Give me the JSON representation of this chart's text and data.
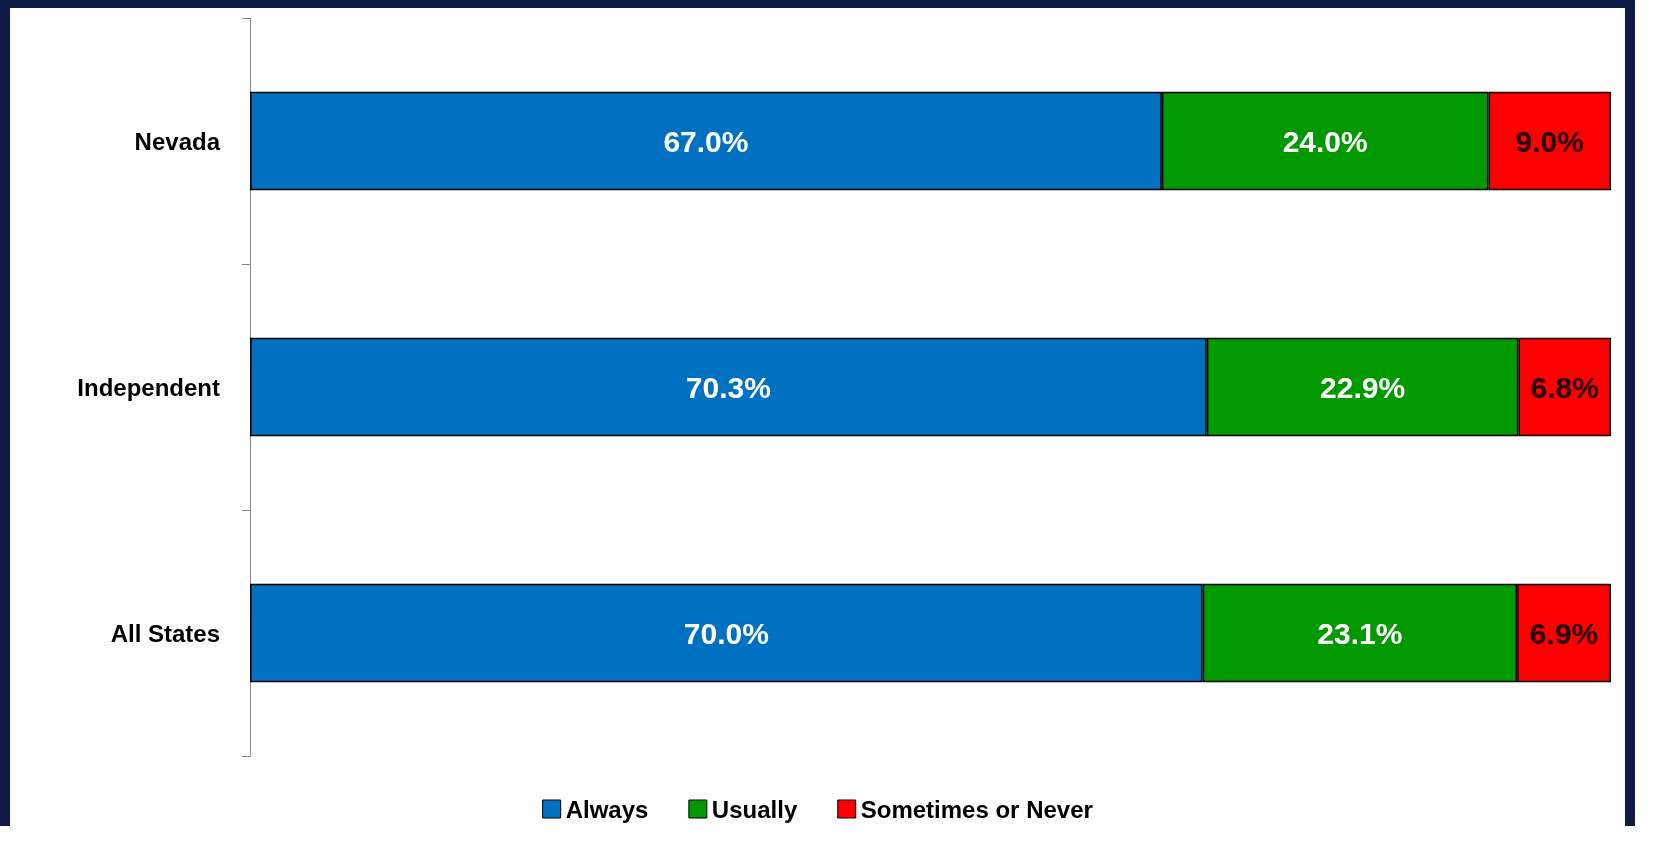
{
  "chart_data": {
    "type": "bar",
    "orientation": "horizontal",
    "stacked": true,
    "categories": [
      "Nevada",
      "Independent",
      "All States"
    ],
    "series": [
      {
        "name": "Always",
        "color": "#0070c0",
        "values": [
          67.0,
          70.3,
          70.0
        ],
        "value_labels": [
          "67.0%",
          "70.3%",
          "70.0%"
        ]
      },
      {
        "name": "Usually",
        "color": "#009900",
        "values": [
          24.0,
          22.9,
          23.1
        ],
        "value_labels": [
          "24.0%",
          "22.9%",
          "23.1%"
        ]
      },
      {
        "name": "Sometimes or Never",
        "color": "#ff0000",
        "values": [
          9.0,
          6.8,
          6.9
        ],
        "value_labels": [
          "9.0%",
          "6.8%",
          "6.9%"
        ]
      }
    ],
    "legend": "bottom",
    "grid": false,
    "tick_labels": "y"
  }
}
